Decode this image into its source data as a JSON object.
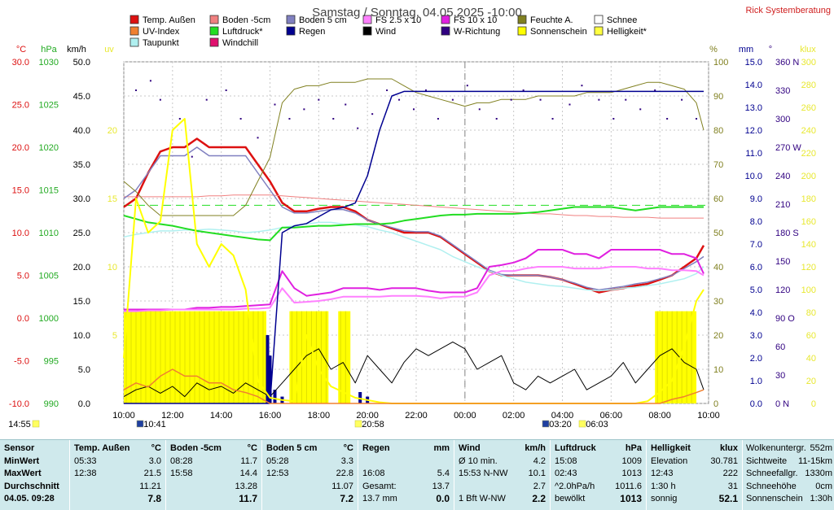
{
  "title": "Samstag / Sonntag, 04.05.2025  -10:00",
  "brand": "Rick Systemberatung",
  "legend": [
    {
      "label": "Temp. Außen",
      "color": "#dd1111"
    },
    {
      "label": "Boden -5cm",
      "color": "#f08080"
    },
    {
      "label": "Boden 5 cm",
      "color": "#8080c0"
    },
    {
      "label": "FS 2.5 x 10",
      "color": "#ff80ff"
    },
    {
      "label": "FS 10 x 10",
      "color": "#e020e0"
    },
    {
      "label": "Feuchte A.",
      "color": "#808020"
    },
    {
      "label": "Schnee",
      "color": "#ffffff"
    },
    {
      "label": "UV-Index",
      "color": "#f08030"
    },
    {
      "label": "Luftdruck*",
      "color": "#22dd22"
    },
    {
      "label": "Regen",
      "color": "#000090"
    },
    {
      "label": "Wind",
      "color": "#000000"
    },
    {
      "label": "W-Richtung",
      "color": "#300080"
    },
    {
      "label": "Sonnenschein",
      "color": "#ffff00"
    },
    {
      "label": "Helligkeit*",
      "color": "#ffff40"
    },
    {
      "label": "Taupunkt",
      "color": "#b0f0f0"
    },
    {
      "label": "Windchill",
      "color": "#e0106e"
    }
  ],
  "axes": {
    "temp": {
      "unit": "°C",
      "ticks": [
        "30.0",
        "25.0",
        "20.0",
        "15.0",
        "10.0",
        "5.0",
        "0.0",
        "-5.0",
        "-10.0"
      ],
      "color": "#dd1111"
    },
    "pressure": {
      "unit": "hPa",
      "ticks": [
        "1030",
        "1025",
        "1020",
        "1015",
        "1010",
        "1005",
        "1000",
        "995",
        "990"
      ],
      "color": "#22aa22"
    },
    "wind": {
      "unit": "km/h",
      "ticks": [
        "50.0",
        "45.0",
        "40.0",
        "35.0",
        "30.0",
        "25.0",
        "20.0",
        "15.0",
        "10.0",
        "5.0",
        "0.0"
      ],
      "color": "#000000"
    },
    "uv": {
      "unit": "uv",
      "ticks": [
        "20",
        "15",
        "10",
        "5"
      ],
      "color": "#e8e830"
    },
    "humidity": {
      "unit": "%",
      "ticks": [
        "100",
        "90",
        "80",
        "70",
        "60",
        "50",
        "40",
        "30",
        "20",
        "10",
        "0"
      ],
      "color": "#808020"
    },
    "rain": {
      "unit": "mm",
      "ticks": [
        "15.0",
        "14.0",
        "13.0",
        "12.0",
        "11.0",
        "10.0",
        "9.0",
        "8.0",
        "7.0",
        "6.0",
        "5.0",
        "4.0",
        "3.0",
        "2.0",
        "1.0",
        "0.0"
      ],
      "color": "#000090"
    },
    "direction": {
      "unit": "°",
      "ticks": [
        "360 N",
        "330",
        "300",
        "270 W",
        "240",
        "210",
        "180 S",
        "150",
        "120",
        "90  O",
        "60",
        "30",
        "0   N"
      ],
      "color": "#300080"
    },
    "lux": {
      "unit": "klux",
      "ticks": [
        "300",
        "280",
        "260",
        "240",
        "220",
        "200",
        "180",
        "160",
        "140",
        "120",
        "100",
        "80",
        "60",
        "40",
        "20",
        "0"
      ],
      "color": "#e8e830"
    }
  },
  "x_ticks": [
    "10:00",
    "12:00",
    "14:00",
    "16:00",
    "18:00",
    "20:00",
    "22:00",
    "00:00",
    "02:00",
    "04:00",
    "06:00",
    "08:00",
    "10:00"
  ],
  "sun_events": [
    {
      "label": "14:55",
      "kind": "sunset-prev"
    },
    {
      "label": "10:41",
      "kind": "moonset"
    },
    {
      "label": "20:58",
      "kind": "sunset"
    },
    {
      "label": "03:20",
      "kind": "moonrise"
    },
    {
      "label": "06:03",
      "kind": "sunrise"
    }
  ],
  "stats": {
    "sensor": {
      "title": "Sensor",
      "rows": [
        "MinWert",
        "MaxWert",
        "Durchschnitt",
        "04.05. 09:28"
      ]
    },
    "temp": {
      "title": "Temp. Außen",
      "unit": "°C",
      "rows": [
        [
          "05:33",
          "3.0"
        ],
        [
          "12:38",
          "21.5"
        ],
        [
          "",
          "11.21"
        ],
        [
          "",
          "7.8"
        ]
      ]
    },
    "soil_m5": {
      "title": "Boden -5cm",
      "unit": "°C",
      "rows": [
        [
          "08:28",
          "11.7"
        ],
        [
          "15:58",
          "14.4"
        ],
        [
          "",
          "13.28"
        ],
        [
          "",
          "11.7"
        ]
      ]
    },
    "soil_p5": {
      "title": "Boden 5 cm",
      "unit": "°C",
      "rows": [
        [
          "05:28",
          "3.3"
        ],
        [
          "12:53",
          "22.8"
        ],
        [
          "",
          "11.07"
        ],
        [
          "",
          "7.2"
        ]
      ]
    },
    "rain": {
      "title": "Regen",
      "unit": "mm",
      "rows": [
        [
          "",
          ""
        ],
        [
          "16:08",
          "5.4"
        ],
        [
          "Gesamt:",
          "13.7"
        ],
        [
          "13.7 mm",
          "0.0"
        ]
      ]
    },
    "wind": {
      "title": "Wind",
      "unit": "km/h",
      "rows": [
        [
          "Ø 10 min.",
          "4.2"
        ],
        [
          "15:53  N-NW",
          "10.1"
        ],
        [
          "",
          "2.7"
        ],
        [
          "1 Bft W-NW",
          "2.2"
        ]
      ]
    },
    "pressure": {
      "title": "Luftdruck",
      "unit": "hPa",
      "rows": [
        [
          "15:08",
          "1009"
        ],
        [
          "02:43",
          "1013"
        ],
        [
          "^2.0hPa/h",
          "1011.6"
        ],
        [
          "bewölkt",
          "1013"
        ]
      ]
    },
    "light": {
      "title": "Helligkeit",
      "unit": "klux",
      "rows": [
        [
          "Elevation",
          "30.781"
        ],
        [
          "12:43",
          "222"
        ],
        [
          "1:30 h",
          "31"
        ],
        [
          "sonnig",
          "52.1"
        ]
      ]
    },
    "misc": {
      "rows": [
        [
          "Wolkenuntergr.",
          "552m"
        ],
        [
          "Sichtweite",
          "11-15km"
        ],
        [
          "Schneefallgr.",
          "1330m"
        ],
        [
          "Schneehöhe",
          "0cm"
        ],
        [
          "Sonnenschein",
          "1:30h"
        ]
      ]
    }
  },
  "chart_data": {
    "type": "line",
    "title": "Samstag / Sonntag, 04.05.2025  -10:00",
    "x_hours": [
      10,
      10.5,
      11,
      11.5,
      12,
      12.5,
      13,
      13.5,
      14,
      14.5,
      15,
      15.5,
      16,
      16.5,
      17,
      17.5,
      18,
      18.5,
      19,
      19.5,
      20,
      20.5,
      21,
      21.5,
      22,
      22.5,
      23,
      23.5,
      24,
      24.5,
      25,
      25.5,
      26,
      26.5,
      27,
      27.5,
      28,
      28.5,
      29,
      29.5,
      30,
      30.5,
      31,
      31.5,
      32,
      32.5,
      33,
      33.5,
      33.8
    ],
    "series": [
      {
        "name": "Temp. Außen",
        "axis": "temp",
        "color": "#dd1111",
        "width": 2.5,
        "values": [
          13,
          14,
          17,
          19.5,
          20,
          20,
          21,
          20,
          20,
          20,
          20,
          18,
          16,
          13.5,
          12.5,
          12.5,
          12.8,
          13,
          13,
          12.5,
          11.5,
          11,
          10.5,
          10,
          10,
          10,
          9.5,
          8.5,
          7.5,
          6.5,
          5.5,
          5,
          5,
          5,
          5,
          4.8,
          4.5,
          4,
          3.5,
          3,
          3.3,
          3.5,
          3.8,
          4,
          4.5,
          5,
          6,
          7,
          8.5
        ]
      },
      {
        "name": "Boden -5cm",
        "axis": "temp",
        "color": "#f08080",
        "width": 1,
        "values": [
          14.2,
          14.2,
          14.2,
          14.2,
          14.2,
          14.2,
          14.2,
          14.3,
          14.3,
          14.4,
          14.4,
          14.4,
          14.4,
          14.3,
          14.2,
          14.1,
          14.0,
          13.9,
          13.8,
          13.7,
          13.6,
          13.5,
          13.4,
          13.3,
          13.2,
          13.1,
          13.0,
          12.9,
          12.8,
          12.7,
          12.6,
          12.5,
          12.4,
          12.3,
          12.2,
          12.2,
          12.1,
          12.0,
          12.0,
          11.9,
          11.9,
          11.8,
          11.8,
          11.8,
          11.7,
          11.7,
          11.7,
          11.7,
          11.7
        ]
      },
      {
        "name": "Boden 5 cm",
        "axis": "temp",
        "color": "#8080c0",
        "width": 1.5,
        "values": [
          14,
          15,
          17,
          19,
          19,
          19,
          20,
          19,
          19,
          19,
          19,
          17,
          15,
          13,
          12.3,
          12.3,
          12.5,
          12.7,
          12.7,
          12.3,
          11.5,
          11,
          10.6,
          10.2,
          10.1,
          10.1,
          9.6,
          8.6,
          7.6,
          6.6,
          5.6,
          5.1,
          5,
          5,
          5,
          4.8,
          4.5,
          4.1,
          3.6,
          3.3,
          3.5,
          3.7,
          4,
          4.2,
          4.6,
          5,
          5.8,
          6.6,
          7.2
        ]
      },
      {
        "name": "Taupunkt",
        "axis": "temp",
        "color": "#b0f0f0",
        "width": 1.5,
        "values": [
          9.5,
          9.8,
          10,
          10.2,
          10.2,
          10.3,
          10.3,
          10.4,
          10.3,
          10.2,
          10,
          10.1,
          10.3,
          10.6,
          10.8,
          11,
          11.2,
          11.2,
          11,
          10.9,
          10.7,
          10.3,
          10,
          9.5,
          9,
          8.5,
          8,
          7.2,
          6.6,
          6,
          5.5,
          5,
          4.6,
          4.2,
          4,
          3.8,
          3.7,
          3.5,
          3.3,
          3.2,
          3.3,
          3.5,
          3.6,
          3.8,
          4,
          4.3,
          4.6,
          5.2,
          6
        ]
      },
      {
        "name": "Luftdruck*",
        "axis": "pressure",
        "color": "#22dd22",
        "width": 2,
        "values": [
          1012,
          1011.6,
          1011.2,
          1011,
          1010.8,
          1010.5,
          1010.2,
          1010,
          1009.8,
          1009.6,
          1009.4,
          1009.2,
          1009.1,
          1010.6,
          1010.6,
          1010.7,
          1010.8,
          1010.8,
          1010.9,
          1011,
          1011,
          1011,
          1011.1,
          1011.4,
          1011.6,
          1011.8,
          1012,
          1012.1,
          1012.1,
          1012.2,
          1012.2,
          1012.2,
          1012.2,
          1012.3,
          1012.4,
          1012.6,
          1012.8,
          1013,
          1013,
          1013,
          1013,
          1012.8,
          1012.6,
          1012.8,
          1013,
          1013,
          1013,
          1013,
          1013
        ]
      },
      {
        "name": "Feuchte A.",
        "axis": "humidity",
        "color": "#808020",
        "width": 1,
        "values": [
          65,
          62,
          58,
          55,
          55,
          55,
          55,
          55,
          55,
          55,
          58,
          65,
          72,
          88,
          92,
          93,
          93,
          94,
          94,
          94,
          95,
          95,
          95,
          93,
          91,
          90,
          89,
          88,
          87,
          88,
          88,
          89,
          89,
          89,
          90,
          90,
          90,
          90,
          91,
          91,
          91,
          92,
          93,
          94,
          94,
          93,
          92,
          88,
          80
        ]
      },
      {
        "name": "Wind",
        "axis": "wind",
        "color": "#000000",
        "width": 1,
        "values": [
          1,
          2,
          2.5,
          1.5,
          2.5,
          1,
          3,
          2,
          2.5,
          1.5,
          3,
          2,
          1,
          3,
          5,
          7,
          8,
          5,
          6,
          3,
          7,
          5,
          3,
          6,
          8,
          7,
          8,
          9,
          8,
          5,
          6,
          7,
          3,
          2,
          4,
          3,
          4,
          5,
          2,
          3,
          4,
          6,
          3,
          5,
          7,
          8,
          6,
          5,
          2
        ]
      },
      {
        "name": "FS 10 x 10",
        "axis": "temp",
        "color": "#e020e0",
        "width": 2,
        "values": [
          1,
          1,
          1,
          1,
          1,
          1,
          1.2,
          1.2,
          1.3,
          1.3,
          1.4,
          1.5,
          1.6,
          5.5,
          3.5,
          2.6,
          2.8,
          3,
          3.5,
          3.5,
          3.5,
          3.3,
          3.5,
          3.5,
          3.5,
          3.2,
          3,
          3,
          3,
          3.5,
          6,
          6.2,
          6.5,
          7,
          8,
          8,
          8,
          7.5,
          7.5,
          7,
          8,
          8,
          8,
          8,
          8,
          7.5,
          7.5,
          7,
          5.2
        ]
      },
      {
        "name": "FS 2.5 x 10",
        "axis": "temp",
        "color": "#ff80ff",
        "width": 2,
        "values": [
          0.8,
          0.8,
          0.9,
          0.9,
          1,
          1,
          1,
          1,
          1,
          1,
          1.1,
          1.1,
          1.2,
          3.5,
          1.8,
          1.9,
          2,
          2.2,
          2.5,
          2.5,
          2.5,
          2.5,
          2.6,
          2.6,
          2.6,
          2.5,
          2.3,
          2.5,
          2.5,
          3,
          5,
          5.5,
          5.5,
          5.8,
          6,
          6,
          6,
          5.8,
          5.8,
          5.8,
          6,
          6,
          6,
          5.8,
          5.8,
          5.6,
          5.6,
          5.5,
          5
        ]
      },
      {
        "name": "Regen",
        "axis": "rain",
        "color": "#000090",
        "width": 1.5,
        "values": [
          0,
          0,
          0,
          0,
          0,
          0,
          0,
          0,
          0,
          0,
          0,
          0,
          0,
          7.5,
          7.8,
          7.9,
          8.2,
          8.5,
          8.6,
          8.8,
          10,
          12,
          13.5,
          13.7,
          13.7,
          13.7,
          13.7,
          13.7,
          13.7,
          13.7,
          13.7,
          13.7,
          13.7,
          13.7,
          13.7,
          13.7,
          13.7,
          13.7,
          13.7,
          13.7,
          13.7,
          13.7,
          13.7,
          13.7,
          13.7,
          13.7,
          13.7,
          13.7,
          13.7
        ]
      },
      {
        "name": "Helligkeit*",
        "axis": "lux",
        "color": "#ffff00",
        "width": 2,
        "values": [
          40,
          180,
          150,
          160,
          240,
          250,
          140,
          120,
          140,
          130,
          100,
          20,
          5,
          3,
          2,
          60,
          30,
          15,
          10,
          5,
          3,
          1,
          0,
          0,
          0,
          0,
          0,
          0,
          0,
          0,
          0,
          0,
          0,
          0,
          0,
          0,
          0,
          0,
          0,
          0,
          0,
          0,
          0,
          2,
          10,
          20,
          50,
          90,
          100
        ]
      },
      {
        "name": "UV-Index",
        "axis": "uv",
        "color": "#f08030",
        "width": 1.5,
        "values": [
          1,
          1.5,
          1.2,
          2,
          2.5,
          2,
          2,
          1.5,
          1.5,
          1,
          0.8,
          0.5,
          0,
          0,
          0,
          0,
          0,
          0,
          0,
          0,
          0,
          0,
          0,
          0,
          0,
          0,
          0,
          0,
          0,
          0,
          0,
          0,
          0,
          0,
          0,
          0,
          0,
          0,
          0,
          0,
          0,
          0,
          0,
          0,
          0,
          0.3,
          0.5,
          0.8,
          1
        ]
      }
    ],
    "sunshine_blocks": [
      [
        10,
        15.85
      ],
      [
        16.8,
        18.4
      ],
      [
        18.8,
        19.3
      ],
      [
        31.8,
        33.5
      ]
    ],
    "rain_bars": [
      [
        15.9,
        3
      ],
      [
        16.0,
        2.1
      ],
      [
        16.2,
        0.6
      ],
      [
        16.5,
        0.3
      ],
      [
        19.7,
        0.5
      ],
      [
        20.0,
        0.3
      ]
    ],
    "wind_direction_scatter": [
      [
        10.5,
        330
      ],
      [
        11.1,
        340
      ],
      [
        11.5,
        320
      ],
      [
        12.3,
        300
      ],
      [
        12.8,
        260
      ],
      [
        13.4,
        320
      ],
      [
        14.2,
        330
      ],
      [
        14.8,
        300
      ],
      [
        15.5,
        280
      ],
      [
        16.2,
        315
      ],
      [
        16.8,
        300
      ],
      [
        17.4,
        310
      ],
      [
        18.0,
        320
      ],
      [
        18.6,
        300
      ],
      [
        19.1,
        315
      ],
      [
        19.6,
        290
      ],
      [
        20.2,
        305
      ],
      [
        20.8,
        330
      ],
      [
        21.3,
        320
      ],
      [
        21.9,
        310
      ],
      [
        22.4,
        330
      ],
      [
        22.9,
        300
      ],
      [
        23.5,
        320
      ],
      [
        24.1,
        335
      ],
      [
        24.6,
        310
      ],
      [
        25.3,
        300
      ],
      [
        25.9,
        320
      ],
      [
        26.4,
        330
      ],
      [
        27.1,
        320
      ],
      [
        27.6,
        300
      ],
      [
        28.3,
        315
      ],
      [
        28.8,
        335
      ],
      [
        29.5,
        320
      ],
      [
        30.1,
        300
      ],
      [
        30.6,
        320
      ],
      [
        31.2,
        310
      ],
      [
        31.8,
        330
      ],
      [
        32.3,
        300
      ],
      [
        32.9,
        320
      ],
      [
        33.5,
        300
      ]
    ],
    "reference_lines": {
      "humidity_dashed": 58,
      "pressure_dashed": 1013
    }
  }
}
